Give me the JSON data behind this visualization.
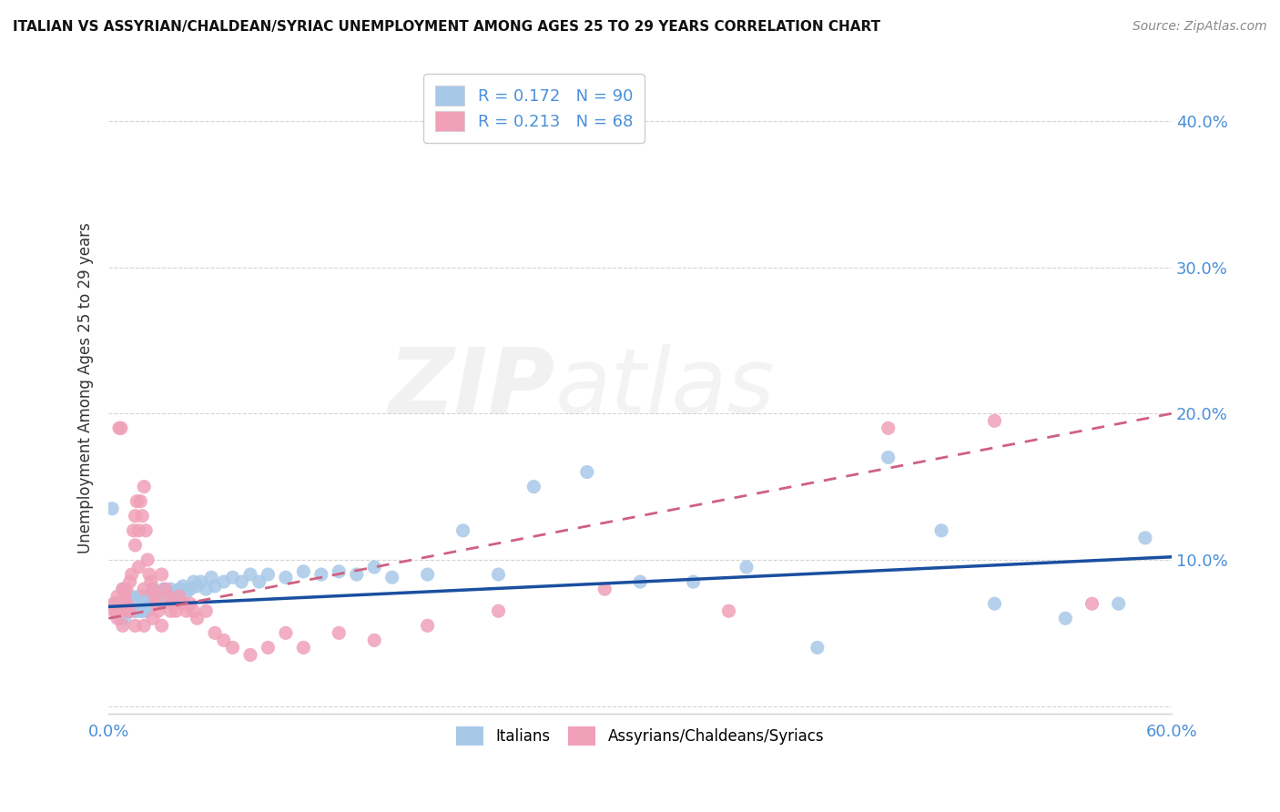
{
  "title": "ITALIAN VS ASSYRIAN/CHALDEAN/SYRIAC UNEMPLOYMENT AMONG AGES 25 TO 29 YEARS CORRELATION CHART",
  "source": "Source: ZipAtlas.com",
  "ylabel": "Unemployment Among Ages 25 to 29 years",
  "xlim": [
    0.0,
    0.6
  ],
  "ylim": [
    -0.005,
    0.44
  ],
  "color_italian": "#a8c8e8",
  "color_assyrian": "#f0a0b8",
  "color_italian_line": "#1a4fa0",
  "color_assyrian_line": "#d06080",
  "color_label": "#4a90d9",
  "watermark_zip": "ZIP",
  "watermark_atlas": "atlas",
  "background_color": "#ffffff",
  "grid_color": "#d0d0d0",
  "italian_x": [
    0.003,
    0.005,
    0.007,
    0.008,
    0.009,
    0.01,
    0.01,
    0.01,
    0.01,
    0.01,
    0.012,
    0.012,
    0.013,
    0.013,
    0.014,
    0.015,
    0.015,
    0.015,
    0.016,
    0.016,
    0.017,
    0.017,
    0.018,
    0.018,
    0.018,
    0.019,
    0.019,
    0.02,
    0.02,
    0.02,
    0.02,
    0.021,
    0.022,
    0.022,
    0.023,
    0.024,
    0.025,
    0.025,
    0.026,
    0.027,
    0.028,
    0.029,
    0.03,
    0.03,
    0.031,
    0.032,
    0.033,
    0.034,
    0.035,
    0.036,
    0.038,
    0.04,
    0.042,
    0.044,
    0.046,
    0.048,
    0.05,
    0.052,
    0.055,
    0.058,
    0.06,
    0.065,
    0.07,
    0.075,
    0.08,
    0.085,
    0.09,
    0.1,
    0.11,
    0.12,
    0.13,
    0.14,
    0.15,
    0.16,
    0.18,
    0.2,
    0.22,
    0.24,
    0.27,
    0.3,
    0.33,
    0.36,
    0.4,
    0.44,
    0.47,
    0.5,
    0.54,
    0.57,
    0.585,
    0.002
  ],
  "italian_y": [
    0.07,
    0.07,
    0.06,
    0.08,
    0.06,
    0.07,
    0.065,
    0.07,
    0.075,
    0.065,
    0.07,
    0.065,
    0.075,
    0.07,
    0.065,
    0.07,
    0.065,
    0.068,
    0.07,
    0.065,
    0.075,
    0.068,
    0.07,
    0.065,
    0.072,
    0.068,
    0.065,
    0.075,
    0.07,
    0.065,
    0.068,
    0.072,
    0.07,
    0.065,
    0.075,
    0.068,
    0.08,
    0.072,
    0.075,
    0.07,
    0.078,
    0.072,
    0.075,
    0.07,
    0.08,
    0.075,
    0.078,
    0.072,
    0.08,
    0.075,
    0.078,
    0.08,
    0.082,
    0.078,
    0.08,
    0.085,
    0.082,
    0.085,
    0.08,
    0.088,
    0.082,
    0.085,
    0.088,
    0.085,
    0.09,
    0.085,
    0.09,
    0.088,
    0.092,
    0.09,
    0.092,
    0.09,
    0.095,
    0.088,
    0.09,
    0.12,
    0.09,
    0.15,
    0.16,
    0.085,
    0.085,
    0.095,
    0.04,
    0.17,
    0.12,
    0.07,
    0.06,
    0.07,
    0.115,
    0.135
  ],
  "assyrian_x": [
    0.003,
    0.004,
    0.005,
    0.006,
    0.007,
    0.008,
    0.009,
    0.01,
    0.01,
    0.01,
    0.011,
    0.012,
    0.013,
    0.014,
    0.015,
    0.015,
    0.016,
    0.017,
    0.017,
    0.018,
    0.019,
    0.02,
    0.02,
    0.021,
    0.022,
    0.023,
    0.024,
    0.025,
    0.026,
    0.027,
    0.028,
    0.03,
    0.032,
    0.034,
    0.036,
    0.038,
    0.04,
    0.042,
    0.044,
    0.046,
    0.048,
    0.05,
    0.055,
    0.06,
    0.065,
    0.07,
    0.08,
    0.09,
    0.1,
    0.11,
    0.13,
    0.15,
    0.18,
    0.22,
    0.28,
    0.35,
    0.44,
    0.5,
    0.555,
    0.003,
    0.005,
    0.008,
    0.012,
    0.015,
    0.02,
    0.025,
    0.03,
    0.035
  ],
  "assyrian_y": [
    0.07,
    0.065,
    0.075,
    0.19,
    0.19,
    0.08,
    0.075,
    0.07,
    0.08,
    0.07,
    0.065,
    0.085,
    0.09,
    0.12,
    0.13,
    0.11,
    0.14,
    0.12,
    0.095,
    0.14,
    0.13,
    0.15,
    0.08,
    0.12,
    0.1,
    0.09,
    0.085,
    0.08,
    0.075,
    0.07,
    0.065,
    0.09,
    0.08,
    0.075,
    0.07,
    0.065,
    0.075,
    0.07,
    0.065,
    0.07,
    0.065,
    0.06,
    0.065,
    0.05,
    0.045,
    0.04,
    0.035,
    0.04,
    0.05,
    0.04,
    0.05,
    0.045,
    0.055,
    0.065,
    0.08,
    0.065,
    0.19,
    0.195,
    0.07,
    0.065,
    0.06,
    0.055,
    0.065,
    0.055,
    0.055,
    0.06,
    0.055,
    0.065
  ],
  "it_trend_x0": 0.0,
  "it_trend_y0": 0.068,
  "it_trend_x1": 0.6,
  "it_trend_y1": 0.102,
  "as_trend_x0": 0.0,
  "as_trend_y0": 0.06,
  "as_trend_x1": 0.6,
  "as_trend_y1": 0.2
}
